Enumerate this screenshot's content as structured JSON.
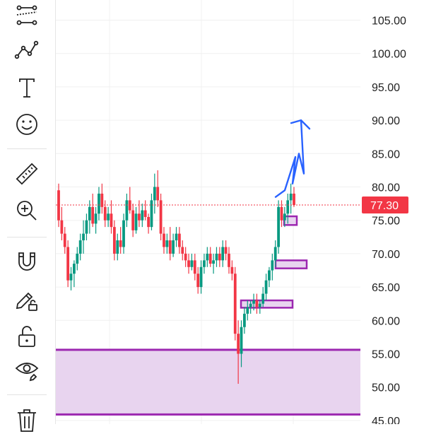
{
  "toolbar": {
    "items": [
      {
        "name": "trend-lines-tool-icon"
      },
      {
        "name": "patterns-tool-icon"
      },
      {
        "name": "text-tool-icon"
      },
      {
        "name": "emoji-tool-icon"
      },
      {
        "name": "ruler-tool-icon"
      },
      {
        "name": "zoom-in-tool-icon"
      },
      {
        "name": "magnet-tool-icon"
      },
      {
        "name": "lock-drawing-tool-icon"
      },
      {
        "name": "unlock-tool-icon"
      },
      {
        "name": "visibility-tool-icon"
      },
      {
        "name": "trash-tool-icon"
      }
    ]
  },
  "chart_data": {
    "type": "candlestick",
    "y_ticks": [
      "105.00",
      "100.00",
      "95.00",
      "90.00",
      "85.00",
      "80.00",
      "75.00",
      "70.00",
      "65.00",
      "60.00",
      "55.00",
      "50.00",
      "45.00"
    ],
    "ylim": [
      45,
      106
    ],
    "current_price": "77.30",
    "current_price_value": 77.3,
    "colors": {
      "up": "#089981",
      "down": "#f23645",
      "zone": "#9c27b0",
      "zone_fill": "#e8d4ef",
      "arrow": "#2962ff",
      "price_tag": "#f23645",
      "grid": "#f0f0f0"
    },
    "zones": [
      {
        "low": 45.9,
        "high": 55.6
      },
      {
        "low": 61.9,
        "high": 63.0
      },
      {
        "low": 67.8,
        "high": 69.0
      },
      {
        "low": 74.3,
        "high": 75.6
      }
    ],
    "candles": [
      [
        79.5,
        80.5,
        74,
        75
      ],
      [
        75,
        77,
        72,
        73
      ],
      [
        73,
        74,
        70,
        71
      ],
      [
        71,
        72,
        65,
        66
      ],
      [
        66,
        68,
        64.5,
        67
      ],
      [
        67,
        69,
        65,
        68.5
      ],
      [
        68.5,
        71,
        67.5,
        70
      ],
      [
        70,
        73,
        69,
        72
      ],
      [
        72,
        75,
        70,
        73
      ],
      [
        73,
        76,
        72,
        75
      ],
      [
        75,
        78,
        73,
        77
      ],
      [
        77,
        79,
        74,
        74.5
      ],
      [
        74.5,
        77,
        73,
        76
      ],
      [
        76,
        80,
        75,
        79
      ],
      [
        79,
        80.5,
        76,
        77
      ],
      [
        77,
        78,
        74,
        75
      ],
      [
        75,
        77,
        74,
        76
      ],
      [
        76,
        78,
        73,
        74
      ],
      [
        74,
        75,
        69,
        70
      ],
      [
        70,
        73,
        69,
        72
      ],
      [
        72,
        74,
        70,
        71
      ],
      [
        71,
        76,
        70,
        75
      ],
      [
        75,
        79,
        74,
        78
      ],
      [
        78,
        80,
        76,
        76.5
      ],
      [
        76.5,
        77.5,
        72.5,
        73.5
      ],
      [
        73.5,
        77,
        73,
        76
      ],
      [
        76,
        78,
        74,
        75
      ],
      [
        75,
        77.5,
        74,
        76.5
      ],
      [
        76.5,
        78,
        75,
        75.5
      ],
      [
        75.5,
        76,
        73,
        74
      ],
      [
        74,
        79,
        73.5,
        78
      ],
      [
        78,
        82,
        76,
        80
      ],
      [
        80,
        82.5,
        77,
        78
      ],
      [
        78,
        79,
        72,
        73
      ],
      [
        73,
        74,
        70,
        71
      ],
      [
        71,
        73,
        70,
        72
      ],
      [
        72,
        74,
        69,
        70
      ],
      [
        70,
        73,
        69.5,
        72
      ],
      [
        72,
        74,
        71,
        73
      ],
      [
        73,
        74,
        70,
        71
      ],
      [
        71,
        72,
        69,
        70
      ],
      [
        70,
        71,
        68,
        69
      ],
      [
        69,
        70,
        67,
        68
      ],
      [
        68,
        70,
        67.5,
        69
      ],
      [
        69,
        70,
        66,
        67
      ],
      [
        67,
        68,
        64,
        65
      ],
      [
        65,
        69,
        64,
        68
      ],
      [
        68,
        70,
        67,
        69
      ],
      [
        69,
        71,
        68,
        70
      ],
      [
        70,
        71,
        68,
        68.5
      ],
      [
        68.5,
        70,
        67,
        69
      ],
      [
        69,
        71,
        68,
        70
      ],
      [
        70,
        71,
        68,
        69
      ],
      [
        69,
        72,
        68,
        71
      ],
      [
        71,
        72,
        69,
        70
      ],
      [
        70,
        71,
        67,
        68
      ],
      [
        68,
        69,
        66,
        67
      ],
      [
        67,
        68,
        57,
        58
      ],
      [
        58,
        60,
        50.5,
        55
      ],
      [
        55,
        60,
        53,
        59
      ],
      [
        59,
        62,
        58,
        61
      ],
      [
        61,
        63,
        60,
        62
      ],
      [
        62,
        63,
        61,
        62.5
      ],
      [
        62.5,
        64,
        61.5,
        63
      ],
      [
        63,
        64,
        61,
        62
      ],
      [
        62,
        63,
        61,
        62.5
      ],
      [
        62.5,
        65,
        62,
        64
      ],
      [
        64,
        67,
        63,
        66
      ],
      [
        66,
        68,
        65,
        67.5
      ],
      [
        67.5,
        70,
        66,
        69
      ],
      [
        69,
        72,
        68,
        71
      ],
      [
        71,
        78,
        70,
        77
      ],
      [
        77,
        78,
        74,
        75
      ],
      [
        75,
        77,
        74,
        76
      ],
      [
        76,
        79,
        74.5,
        78
      ],
      [
        78,
        80.5,
        76,
        79
      ],
      [
        79,
        80,
        77,
        77.3
      ]
    ],
    "arrow_path": [
      [
        78.5,
        0
      ],
      [
        79.5,
        5
      ],
      [
        84.5,
        16
      ],
      [
        80.5,
        22
      ],
      [
        85,
        27
      ],
      [
        82,
        34
      ],
      [
        90,
        47
      ],
      [
        88,
        58
      ]
    ]
  }
}
